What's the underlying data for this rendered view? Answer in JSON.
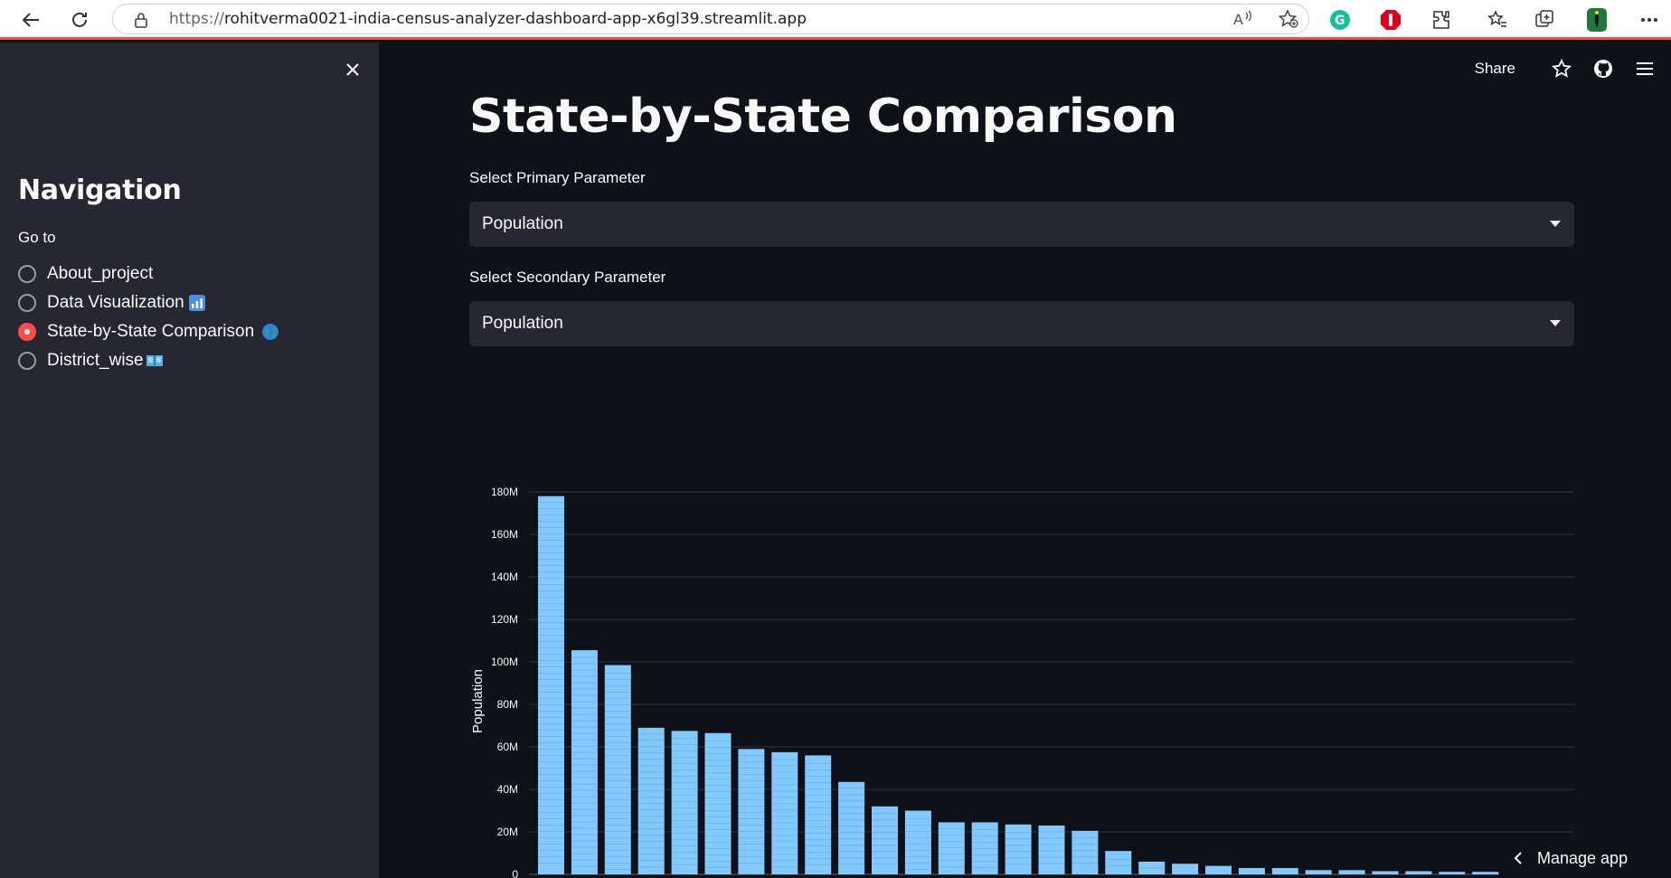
{
  "browser": {
    "url_scheme": "https://",
    "url_host": "rohitverma0021-india-census-analyzer-dashboard-app-x6gl39.streamlit.app"
  },
  "sidebar": {
    "heading": "Navigation",
    "radio_label": "Go to",
    "items": [
      {
        "label": "About_project",
        "selected": false,
        "emoji": ""
      },
      {
        "label": "Data Visualization",
        "selected": false,
        "emoji": "bar-chart-icon"
      },
      {
        "label": "State-by-State Comparison",
        "selected": true,
        "emoji": "globe-icon"
      },
      {
        "label": "District_wise",
        "selected": false,
        "emoji": "book-icon"
      }
    ]
  },
  "header": {
    "share_label": "Share"
  },
  "main": {
    "title": "State-by-State Comparison",
    "primary_label": "Select Primary Parameter",
    "primary_value": "Population",
    "secondary_label": "Select Secondary Parameter",
    "secondary_value": "Population"
  },
  "manage_app": "Manage app",
  "colors": {
    "accent": "#ff4b4b",
    "bar": "#83c9ff",
    "bg": "#0e1117",
    "sidebar": "#262730"
  },
  "chart_data": {
    "type": "bar",
    "ylabel": "Population",
    "ylim": [
      0,
      180000000
    ],
    "yticks": [
      "0",
      "20M",
      "40M",
      "60M",
      "80M",
      "100M",
      "120M",
      "140M",
      "160M",
      "180M"
    ],
    "values": [
      178,
      105.5,
      98.5,
      69,
      67.5,
      66.5,
      59,
      57.5,
      56,
      43.5,
      32,
      30,
      24.5,
      24.5,
      23.5,
      23,
      20.5,
      11,
      6,
      5,
      4,
      3,
      3,
      2,
      2,
      1.5,
      1.5,
      1.2,
      1.2
    ]
  }
}
